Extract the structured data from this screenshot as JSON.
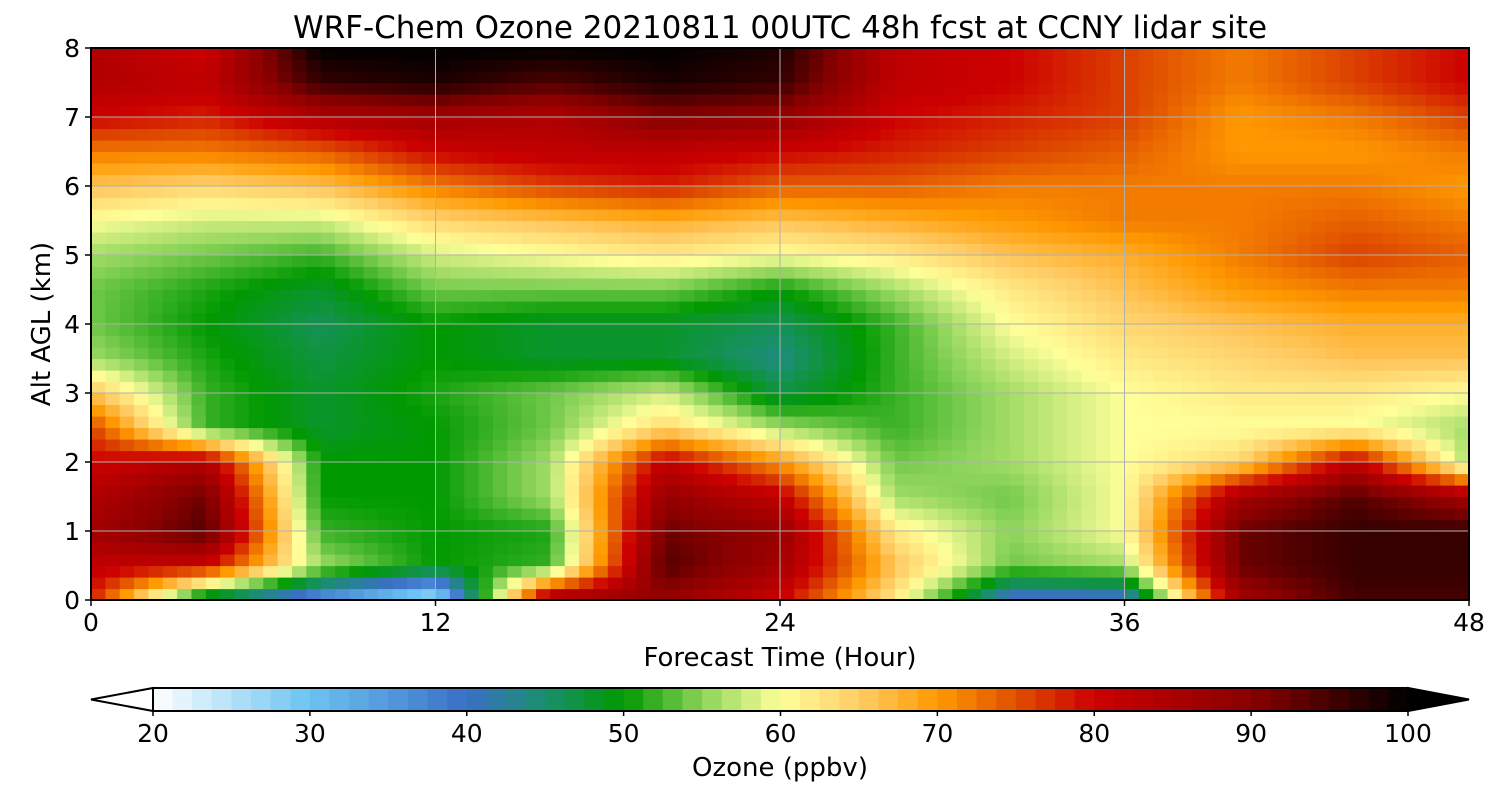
{
  "chart_data": {
    "type": "heatmap",
    "title": "WRF-Chem Ozone  20210811 00UTC 48h fcst at CCNY lidar site",
    "xlabel": "Forecast Time (Hour)",
    "ylabel": "Alt AGL (km)",
    "xlim": [
      0,
      48
    ],
    "ylim": [
      0,
      8
    ],
    "xticks": [
      0,
      12,
      24,
      36,
      48
    ],
    "yticks": [
      0,
      1,
      2,
      3,
      4,
      5,
      6,
      7,
      8
    ],
    "grid": true,
    "x_hours": [
      0,
      4,
      8,
      12,
      16,
      20,
      24,
      28,
      32,
      36,
      40,
      44,
      48
    ],
    "y_km": [
      0.0,
      0.5,
      1.0,
      1.5,
      2.0,
      2.5,
      3.0,
      3.5,
      4.0,
      4.5,
      5.0,
      5.5,
      6.0,
      6.5,
      7.0,
      7.5,
      8.0
    ],
    "z_ppbv": [
      [
        78,
        44,
        34,
        24,
        88,
        88,
        80,
        62,
        38,
        38,
        86,
        95,
        95
      ],
      [
        82,
        80,
        56,
        50,
        52,
        94,
        86,
        66,
        54,
        56,
        92,
        96,
        96
      ],
      [
        86,
        94,
        52,
        50,
        51,
        92,
        88,
        62,
        55,
        60,
        92,
        96,
        96
      ],
      [
        84,
        92,
        50,
        50,
        56,
        88,
        82,
        56,
        54,
        60,
        86,
        94,
        86
      ],
      [
        80,
        84,
        50,
        50,
        56,
        82,
        70,
        54,
        56,
        60,
        64,
        82,
        56
      ],
      [
        76,
        52,
        48,
        50,
        54,
        64,
        56,
        52,
        56,
        60,
        60,
        60,
        56
      ],
      [
        66,
        52,
        48,
        51,
        54,
        58,
        47,
        52,
        56,
        60,
        62,
        62,
        60
      ],
      [
        56,
        51,
        47,
        50,
        48,
        48,
        44,
        52,
        58,
        62,
        64,
        66,
        66
      ],
      [
        54,
        50,
        46,
        50,
        48,
        48,
        46,
        52,
        60,
        64,
        66,
        68,
        68
      ],
      [
        54,
        51,
        48,
        54,
        54,
        54,
        50,
        56,
        62,
        66,
        70,
        72,
        72
      ],
      [
        56,
        54,
        52,
        58,
        60,
        62,
        60,
        62,
        66,
        68,
        72,
        76,
        74
      ],
      [
        60,
        58,
        58,
        64,
        66,
        68,
        66,
        68,
        70,
        72,
        72,
        74,
        72
      ],
      [
        66,
        64,
        66,
        72,
        76,
        78,
        74,
        74,
        72,
        72,
        72,
        72,
        70
      ],
      [
        72,
        72,
        74,
        80,
        82,
        82,
        80,
        78,
        76,
        74,
        70,
        70,
        72
      ],
      [
        80,
        78,
        84,
        86,
        84,
        90,
        88,
        80,
        78,
        76,
        70,
        72,
        76
      ],
      [
        84,
        82,
        96,
        98,
        94,
        98,
        96,
        82,
        80,
        76,
        72,
        76,
        80
      ],
      [
        84,
        80,
        100,
        100,
        100,
        100,
        98,
        82,
        80,
        76,
        72,
        76,
        80
      ]
    ],
    "colorbar": {
      "label": "Ozone  (ppbv)",
      "ticks": [
        20,
        30,
        40,
        50,
        60,
        70,
        80,
        90,
        100
      ],
      "range": [
        20,
        100
      ],
      "extend": "both",
      "orientation": "horizontal",
      "stops": [
        {
          "v": 20,
          "c": "#ffffff"
        },
        {
          "v": 30,
          "c": "#6cc3f2"
        },
        {
          "v": 40,
          "c": "#3a6fc6"
        },
        {
          "v": 45,
          "c": "#1a8f6e"
        },
        {
          "v": 50,
          "c": "#009900"
        },
        {
          "v": 55,
          "c": "#8bd35a"
        },
        {
          "v": 60,
          "c": "#ffff99"
        },
        {
          "v": 65,
          "c": "#ffcc66"
        },
        {
          "v": 70,
          "c": "#ff9900"
        },
        {
          "v": 75,
          "c": "#e05000"
        },
        {
          "v": 80,
          "c": "#cc0000"
        },
        {
          "v": 90,
          "c": "#880000"
        },
        {
          "v": 100,
          "c": "#000000"
        }
      ]
    }
  }
}
